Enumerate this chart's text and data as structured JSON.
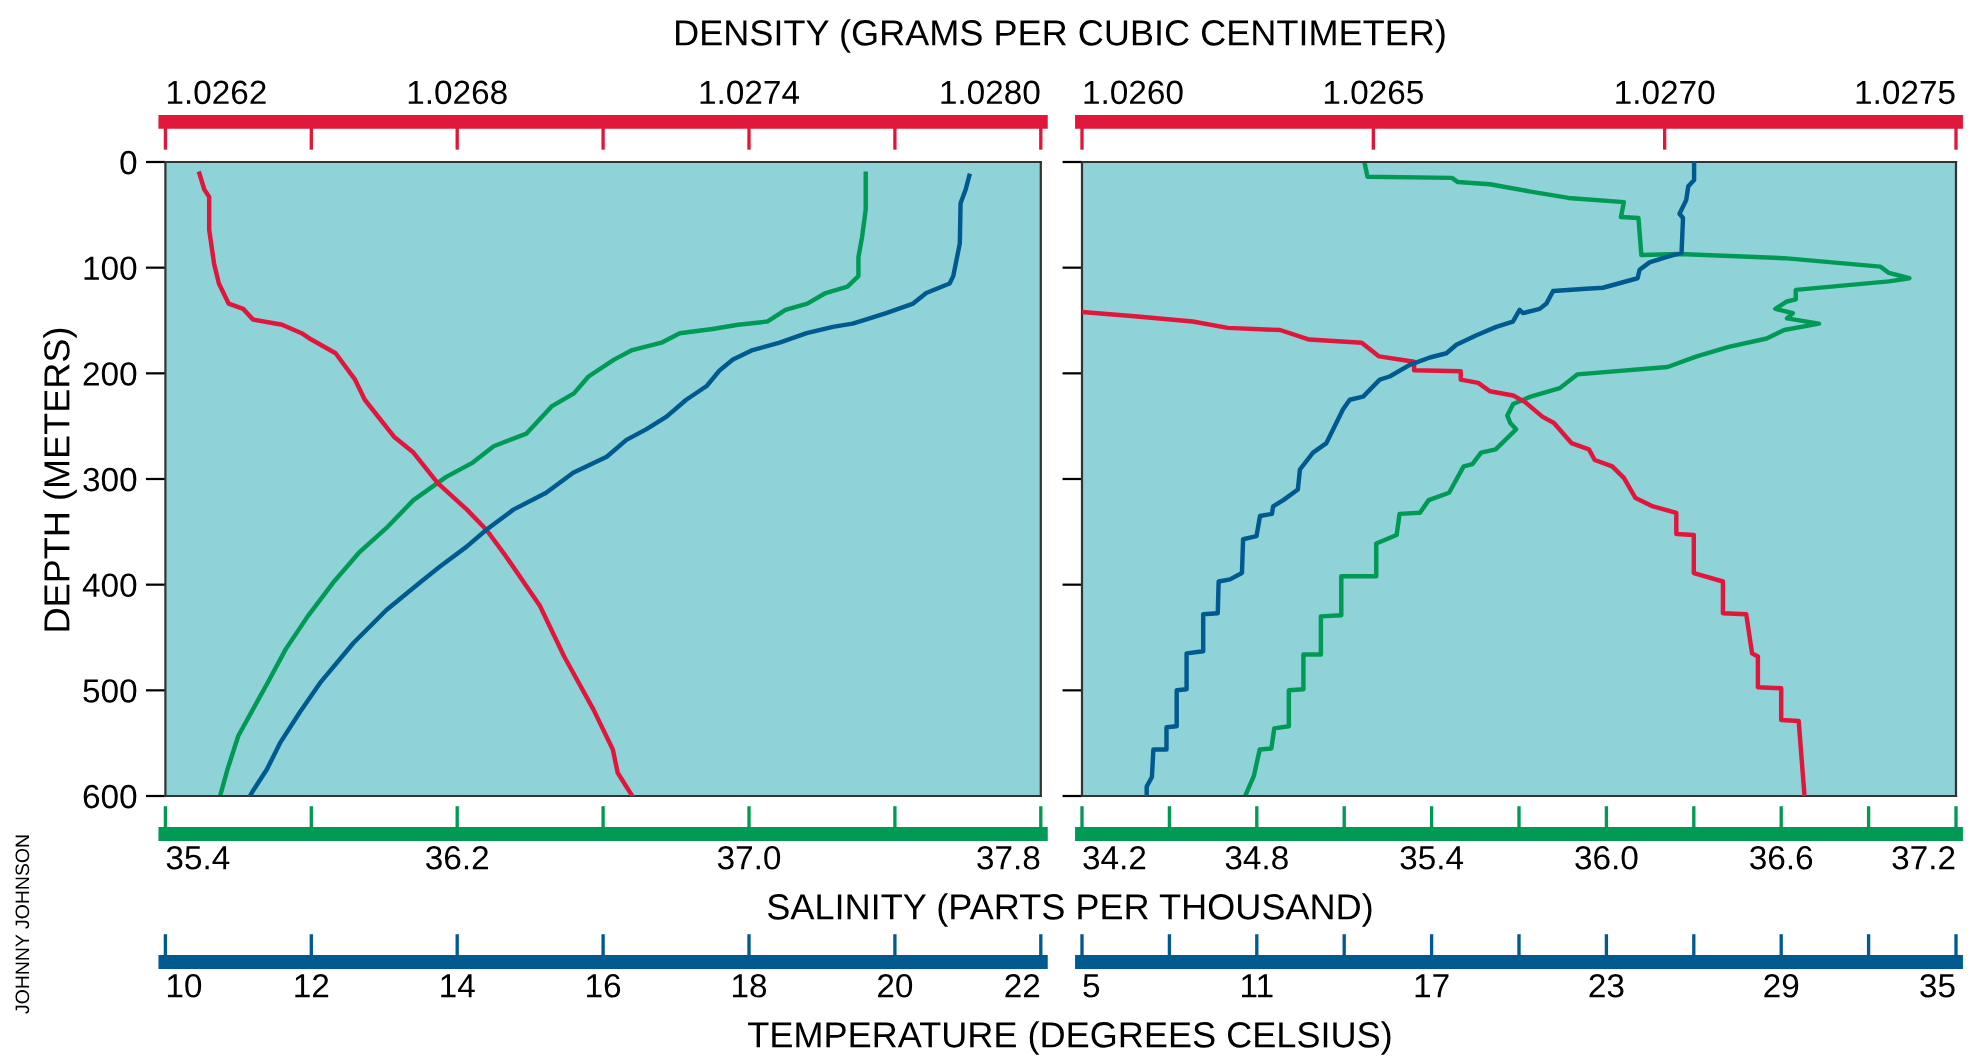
{
  "chart_data": [
    {
      "type": "line",
      "xlabel": "SALINITY (PARTS PER THOUSAND)",
      "x2label": "DENSITY (GRAMS PER CUBIC CENTIMETER)",
      "ylabel": "DEPTH (METERS)",
      "annotations": [
        "JOHNNY JOHNSON"
      ],
      "ylim": [
        600,
        0
      ],
      "yticks": [
        0,
        100,
        200,
        300,
        400,
        500,
        600
      ],
      "xlim": [
        35.4,
        37.8
      ],
      "xticks": [
        35.4,
        {
          "value": 35.8,
          "label": null
        },
        36.2,
        {
          "value": 36.6,
          "label": null
        },
        {
          "value": 37.0,
          "label": "37.0"
        },
        {
          "value": 37.4,
          "label": null
        },
        37.8
      ],
      "x2lim": [
        1.0262,
        1.028
      ],
      "x2ticks": [
        1.0262,
        {
          "value": 1.0265,
          "label": null
        },
        1.0268,
        {
          "value": 1.0271,
          "label": null
        },
        1.0274,
        {
          "value": 1.0277,
          "label": null
        },
        {
          "value": 1.028,
          "label": "1.0280"
        }
      ],
      "series": [
        {
          "axis": "x2",
          "color": "#e0173a",
          "x": [
            1.02627,
            1.02628,
            1.02629,
            1.02629,
            1.0263,
            1.02631,
            1.02633,
            1.02636,
            1.02638,
            1.02644,
            1.02648,
            1.0265,
            1.02655,
            1.02659,
            1.02661,
            1.02667,
            1.02671,
            1.02676,
            1.02682,
            1.02686,
            1.0269,
            1.02697,
            1.02702,
            1.02708,
            1.02712,
            1.02713,
            1.02716
          ],
          "values": [
            11,
            26,
            33,
            64,
            96,
            115,
            134,
            139,
            149,
            154,
            162,
            168,
            181,
            206,
            225,
            260,
            275,
            304,
            329,
            348,
            373,
            420,
            468,
            518,
            556,
            578,
            600
          ]
        },
        {
          "color": "#009a55",
          "x": [
            37.32,
            37.32,
            37.31,
            37.3,
            37.3,
            37.27,
            37.21,
            37.16,
            37.1,
            37.05,
            36.97,
            36.9,
            36.81,
            36.76,
            36.68,
            36.63,
            36.56,
            36.52,
            36.46,
            36.39,
            36.3,
            36.24,
            36.17,
            36.08,
            36.01,
            35.93,
            35.86,
            35.79,
            35.73,
            35.68,
            35.64,
            35.6,
            35.57,
            35.55
          ],
          "values": [
            11,
            45,
            71,
            90,
            108,
            118,
            124,
            134,
            140,
            151,
            154,
            158,
            162,
            171,
            178,
            187,
            203,
            219,
            231,
            257,
            269,
            285,
            298,
            320,
            345,
            370,
            398,
            430,
            461,
            493,
            518,
            543,
            575,
            600
          ]
        }
      ]
    },
    {
      "type": "line",
      "tick_labels": "x",
      "xlabel": "TEMPERATURE (DEGREES CELSIUS)",
      "ylim": [
        600,
        0
      ],
      "yticks": [
        0,
        100,
        200,
        300,
        400,
        500,
        600
      ],
      "xlim": [
        10,
        22
      ],
      "xticks": [
        10,
        12,
        14,
        16,
        18,
        20,
        22
      ],
      "series": [
        {
          "color": "#005a8f",
          "x": [
            21.02,
            20.97,
            20.9,
            20.89,
            20.8,
            20.75,
            20.43,
            20.25,
            19.88,
            19.61,
            19.42,
            19.15,
            18.79,
            18.42,
            18.05,
            17.78,
            17.6,
            17.42,
            17.14,
            16.87,
            16.59,
            16.32,
            16.05,
            15.59,
            15.22,
            14.77,
            14.4,
            14.13,
            13.76,
            13.49,
            13.03,
            12.58,
            12.12,
            11.84,
            11.57,
            11.39,
            11.21,
            11.16
          ],
          "values": [
            13,
            26,
            39,
            77,
            108,
            115,
            124,
            134,
            143,
            149,
            153,
            156,
            162,
            171,
            178,
            187,
            197,
            212,
            225,
            241,
            253,
            263,
            279,
            294,
            313,
            329,
            348,
            364,
            383,
            398,
            424,
            455,
            493,
            521,
            550,
            575,
            594,
            600
          ]
        }
      ]
    },
    {
      "type": "line",
      "tick_labels": "x",
      "ylim": [
        600,
        0
      ],
      "yticks": [
        0,
        100,
        200,
        300,
        400,
        500,
        600
      ],
      "xlim": [
        34.2,
        37.2
      ],
      "xticks": [
        34.2,
        {
          "value": 34.5,
          "label": null
        },
        34.8,
        {
          "value": 35.1,
          "label": null
        },
        35.4,
        {
          "value": 35.7,
          "label": null
        },
        {
          "value": 36.0,
          "label": "36.0"
        },
        {
          "value": 36.3,
          "label": null
        },
        36.6,
        {
          "value": 36.9,
          "label": null
        },
        37.2
      ],
      "x2lim": [
        1.026,
        1.0275
      ],
      "x2ticks": [
        {
          "value": 1.026,
          "label": "1.0260"
        },
        1.0265,
        {
          "value": 1.027,
          "label": "1.0270"
        },
        1.0275
      ],
      "series": [
        {
          "axis": "x2",
          "color": "#e0173a",
          "x": [
            1.026,
            1.02609,
            1.02619,
            1.02625,
            1.02634,
            1.02639,
            1.02648,
            1.02651,
            1.02657,
            1.02657,
            1.02665,
            1.02665,
            1.02668,
            1.0267,
            1.02674,
            1.02676,
            1.02679,
            1.02681,
            1.02684,
            1.02687,
            1.02688,
            1.02691,
            1.02693,
            1.02695,
            1.02698,
            1.02702,
            1.02702,
            1.02705,
            1.02705,
            1.0271,
            1.0271,
            1.02714,
            1.02715,
            1.02716,
            1.02716,
            1.0272,
            1.0272,
            1.02723,
            1.02724
          ],
          "values": [
            142,
            146,
            151,
            157,
            159,
            168,
            171,
            184,
            189,
            197,
            198,
            206,
            209,
            217,
            221,
            227,
            241,
            247,
            266,
            272,
            282,
            288,
            299,
            318,
            326,
            332,
            352,
            353,
            389,
            397,
            427,
            428,
            465,
            468,
            497,
            498,
            528,
            529,
            600
          ]
        },
        {
          "color": "#009a55",
          "x": [
            35.17,
            35.18,
            35.47,
            35.49,
            35.6,
            35.74,
            35.87,
            36.06,
            36.05,
            36.11,
            36.12,
            36.25,
            36.61,
            36.94,
            36.97,
            37.04,
            36.97,
            36.65,
            36.65,
            36.62,
            36.58,
            36.64,
            36.62,
            36.73,
            36.61,
            36.55,
            36.42,
            36.31,
            36.21,
            35.9,
            35.84,
            35.74,
            35.68,
            35.66,
            35.67,
            35.69,
            35.62,
            35.57,
            35.54,
            35.51,
            35.46,
            35.39,
            35.36,
            35.29,
            35.28,
            35.21,
            35.21,
            35.09,
            35.09,
            35.02,
            35.02,
            34.96,
            34.96,
            34.91,
            34.91,
            34.86,
            34.85,
            34.81,
            34.79,
            34.76
          ],
          "values": [
            1,
            14,
            15,
            19,
            21,
            28,
            34,
            38,
            52,
            53,
            88,
            87,
            91,
            99,
            105,
            110,
            113,
            121,
            130,
            132,
            139,
            143,
            148,
            153,
            159,
            167,
            175,
            184,
            194,
            201,
            214,
            222,
            229,
            240,
            247,
            253,
            272,
            275,
            286,
            288,
            313,
            320,
            332,
            333,
            353,
            361,
            392,
            392,
            429,
            430,
            466,
            466,
            499,
            500,
            534,
            536,
            555,
            556,
            581,
            600
          ]
        }
      ]
    },
    {
      "type": "line",
      "tick_labels": "x",
      "ylim": [
        600,
        0
      ],
      "yticks": [
        0,
        100,
        200,
        300,
        400,
        500,
        600
      ],
      "xlim": [
        5,
        35
      ],
      "xticks": [
        5,
        {
          "value": 8,
          "label": null
        },
        11,
        {
          "value": 14,
          "label": null
        },
        17,
        {
          "value": 20,
          "label": null
        },
        23,
        {
          "value": 26,
          "label": null
        },
        29,
        {
          "value": 32,
          "label": null
        },
        35
      ],
      "series": [
        {
          "color": "#005a8f",
          "x": [
            26.01,
            26.01,
            25.81,
            25.74,
            25.51,
            25.63,
            25.58,
            25.05,
            24.48,
            24.14,
            24.07,
            22.88,
            22.31,
            21.17,
            20.94,
            20.71,
            20.14,
            20.02,
            19.79,
            19.22,
            18.54,
            17.85,
            17.51,
            16.94,
            16.25,
            15.56,
            15.22,
            14.65,
            14.19,
            13.96,
            13.39,
            12.93,
            12.48,
            12.41,
            11.91,
            11.56,
            11.52,
            11.11,
            10.99,
            10.53,
            10.49,
            10.08,
            9.69,
            9.66,
            9.16,
            9.16,
            8.59,
            8.59,
            8.25,
            8.25,
            7.9,
            7.9,
            7.45,
            7.4,
            7.22,
            7.22
          ],
          "values": [
            1,
            17,
            23,
            36,
            49,
            53,
            86,
            90,
            95,
            102,
            110,
            119,
            120,
            122,
            134,
            139,
            143,
            140,
            151,
            156,
            164,
            173,
            181,
            185,
            192,
            203,
            206,
            222,
            225,
            234,
            266,
            275,
            291,
            310,
            320,
            326,
            333,
            335,
            354,
            357,
            389,
            395,
            397,
            427,
            428,
            463,
            465,
            499,
            500,
            534,
            535,
            556,
            556,
            582,
            591,
            600
          ]
        }
      ]
    }
  ]
}
